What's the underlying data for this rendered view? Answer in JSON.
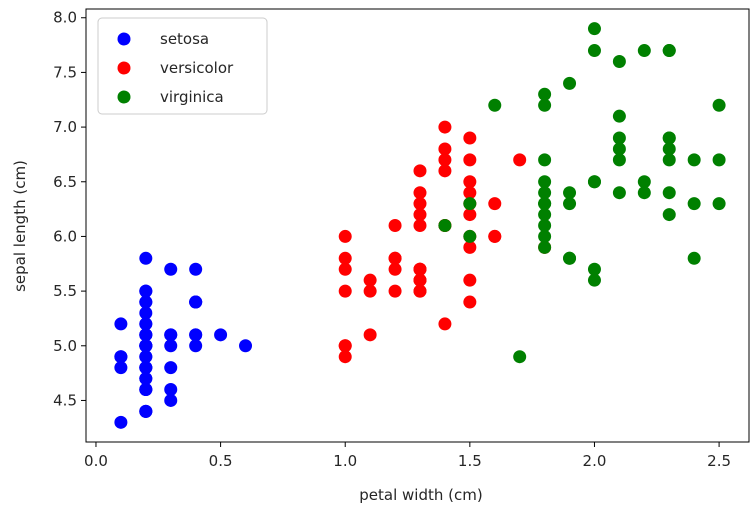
{
  "chart_data": {
    "type": "scatter",
    "xlabel": "petal width (cm)",
    "ylabel": "sepal length (cm)",
    "xlim": [
      -0.04,
      2.62
    ],
    "ylim": [
      4.12,
      8.08
    ],
    "xticks": [
      0.0,
      0.5,
      1.0,
      1.5,
      2.0,
      2.5
    ],
    "xtick_labels": [
      "0.0",
      "0.5",
      "1.0",
      "1.5",
      "2.0",
      "2.5"
    ],
    "yticks": [
      4.5,
      5.0,
      5.5,
      6.0,
      6.5,
      7.0,
      7.5,
      8.0
    ],
    "ytick_labels": [
      "4.5",
      "5.0",
      "5.5",
      "6.0",
      "6.5",
      "7.0",
      "7.5",
      "8.0"
    ],
    "grid": false,
    "legend_position": "top-left",
    "series": [
      {
        "name": "setosa",
        "color": "#0000ff",
        "points": [
          [
            0.2,
            5.1
          ],
          [
            0.2,
            4.9
          ],
          [
            0.2,
            4.7
          ],
          [
            0.2,
            4.6
          ],
          [
            0.2,
            5.0
          ],
          [
            0.4,
            5.4
          ],
          [
            0.3,
            4.6
          ],
          [
            0.2,
            5.0
          ],
          [
            0.2,
            4.4
          ],
          [
            0.1,
            4.9
          ],
          [
            0.2,
            5.4
          ],
          [
            0.2,
            4.8
          ],
          [
            0.1,
            4.8
          ],
          [
            0.1,
            4.3
          ],
          [
            0.2,
            5.8
          ],
          [
            0.4,
            5.7
          ],
          [
            0.4,
            5.4
          ],
          [
            0.3,
            5.1
          ],
          [
            0.3,
            5.7
          ],
          [
            0.3,
            5.1
          ],
          [
            0.2,
            5.4
          ],
          [
            0.4,
            5.1
          ],
          [
            0.2,
            4.6
          ],
          [
            0.5,
            5.1
          ],
          [
            0.2,
            4.8
          ],
          [
            0.2,
            5.0
          ],
          [
            0.4,
            5.0
          ],
          [
            0.2,
            5.2
          ],
          [
            0.2,
            5.2
          ],
          [
            0.2,
            4.7
          ],
          [
            0.2,
            4.8
          ],
          [
            0.4,
            5.4
          ],
          [
            0.1,
            5.2
          ],
          [
            0.2,
            5.5
          ],
          [
            0.2,
            4.9
          ],
          [
            0.2,
            5.0
          ],
          [
            0.2,
            5.5
          ],
          [
            0.1,
            4.9
          ],
          [
            0.2,
            4.4
          ],
          [
            0.2,
            5.1
          ],
          [
            0.3,
            5.0
          ],
          [
            0.3,
            4.5
          ],
          [
            0.2,
            4.4
          ],
          [
            0.6,
            5.0
          ],
          [
            0.4,
            5.1
          ],
          [
            0.3,
            4.8
          ],
          [
            0.2,
            5.1
          ],
          [
            0.2,
            4.6
          ],
          [
            0.2,
            5.3
          ],
          [
            0.2,
            5.0
          ]
        ]
      },
      {
        "name": "versicolor",
        "color": "#ff0000",
        "points": [
          [
            1.4,
            7.0
          ],
          [
            1.5,
            6.4
          ],
          [
            1.5,
            6.9
          ],
          [
            1.3,
            5.5
          ],
          [
            1.5,
            6.5
          ],
          [
            1.3,
            5.7
          ],
          [
            1.6,
            6.3
          ],
          [
            1.0,
            4.9
          ],
          [
            1.3,
            6.6
          ],
          [
            1.4,
            5.2
          ],
          [
            1.0,
            5.0
          ],
          [
            1.5,
            5.9
          ],
          [
            1.0,
            6.0
          ],
          [
            1.4,
            6.1
          ],
          [
            1.3,
            5.6
          ],
          [
            1.4,
            6.7
          ],
          [
            1.5,
            5.6
          ],
          [
            1.0,
            5.8
          ],
          [
            1.5,
            6.2
          ],
          [
            1.1,
            5.6
          ],
          [
            1.8,
            5.9
          ],
          [
            1.3,
            6.1
          ],
          [
            1.5,
            6.3
          ],
          [
            1.2,
            6.1
          ],
          [
            1.3,
            6.4
          ],
          [
            1.4,
            6.6
          ],
          [
            1.4,
            6.8
          ],
          [
            1.7,
            6.7
          ],
          [
            1.5,
            6.0
          ],
          [
            1.0,
            5.7
          ],
          [
            1.1,
            5.5
          ],
          [
            1.0,
            5.5
          ],
          [
            1.2,
            5.8
          ],
          [
            1.6,
            6.0
          ],
          [
            1.5,
            5.4
          ],
          [
            1.6,
            6.0
          ],
          [
            1.5,
            6.7
          ],
          [
            1.3,
            6.3
          ],
          [
            1.3,
            5.6
          ],
          [
            1.3,
            5.5
          ],
          [
            1.2,
            5.5
          ],
          [
            1.4,
            6.1
          ],
          [
            1.2,
            5.8
          ],
          [
            1.0,
            5.0
          ],
          [
            1.3,
            5.6
          ],
          [
            1.2,
            5.7
          ],
          [
            1.3,
            5.7
          ],
          [
            1.3,
            6.2
          ],
          [
            1.1,
            5.1
          ],
          [
            1.3,
            5.7
          ]
        ]
      },
      {
        "name": "virginica",
        "color": "#008000",
        "points": [
          [
            2.5,
            6.3
          ],
          [
            1.9,
            5.8
          ],
          [
            2.1,
            7.1
          ],
          [
            1.8,
            6.3
          ],
          [
            2.2,
            6.5
          ],
          [
            2.1,
            7.6
          ],
          [
            1.7,
            4.9
          ],
          [
            1.8,
            7.3
          ],
          [
            1.8,
            6.7
          ],
          [
            2.5,
            7.2
          ],
          [
            2.0,
            6.5
          ],
          [
            1.9,
            6.4
          ],
          [
            2.1,
            6.8
          ],
          [
            2.0,
            5.7
          ],
          [
            2.4,
            5.8
          ],
          [
            2.3,
            6.4
          ],
          [
            1.8,
            6.5
          ],
          [
            2.2,
            7.7
          ],
          [
            2.3,
            7.7
          ],
          [
            1.5,
            6.0
          ],
          [
            2.3,
            6.9
          ],
          [
            2.0,
            5.6
          ],
          [
            2.0,
            7.7
          ],
          [
            1.8,
            6.3
          ],
          [
            2.1,
            6.7
          ],
          [
            1.8,
            7.2
          ],
          [
            1.8,
            6.2
          ],
          [
            1.8,
            6.1
          ],
          [
            2.1,
            6.4
          ],
          [
            1.6,
            7.2
          ],
          [
            1.9,
            7.4
          ],
          [
            2.0,
            7.9
          ],
          [
            2.2,
            6.4
          ],
          [
            1.5,
            6.3
          ],
          [
            1.4,
            6.1
          ],
          [
            2.3,
            7.7
          ],
          [
            2.4,
            6.3
          ],
          [
            1.8,
            6.4
          ],
          [
            1.8,
            6.0
          ],
          [
            2.1,
            6.9
          ],
          [
            2.4,
            6.7
          ],
          [
            2.3,
            6.9
          ],
          [
            1.9,
            5.8
          ],
          [
            2.3,
            6.8
          ],
          [
            2.5,
            6.7
          ],
          [
            2.3,
            6.7
          ],
          [
            1.9,
            6.3
          ],
          [
            2.0,
            6.5
          ],
          [
            2.3,
            6.2
          ],
          [
            1.8,
            5.9
          ]
        ]
      }
    ]
  }
}
